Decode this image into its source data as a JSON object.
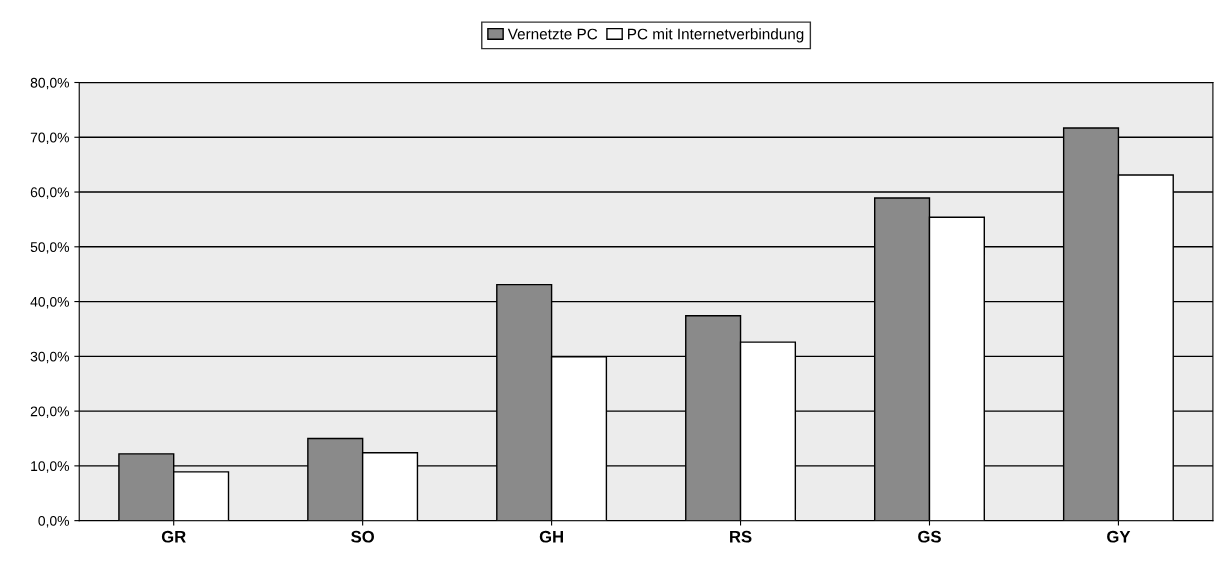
{
  "chart_data": {
    "type": "bar",
    "categories": [
      "GR",
      "SO",
      "GH",
      "RS",
      "GS",
      "GY"
    ],
    "series": [
      {
        "name": "Vernetzte PC",
        "color": "#8a8a8a",
        "values": [
          12.2,
          15.0,
          43.1,
          37.4,
          58.9,
          71.7
        ]
      },
      {
        "name": "PC mit Internetverbindung",
        "color": "#ffffff",
        "values": [
          8.9,
          12.4,
          29.9,
          32.6,
          55.4,
          63.1
        ]
      }
    ],
    "ylim": [
      0,
      80
    ],
    "yticks": [
      {
        "value": 0,
        "label": "0,0%"
      },
      {
        "value": 10,
        "label": "10,0%"
      },
      {
        "value": 20,
        "label": "20,0%"
      },
      {
        "value": 30,
        "label": "30,0%"
      },
      {
        "value": 40,
        "label": "40,0%"
      },
      {
        "value": 50,
        "label": "50,0%"
      },
      {
        "value": 60,
        "label": "60,0%"
      },
      {
        "value": 70,
        "label": "70,0%"
      },
      {
        "value": 80,
        "label": "80,0%"
      }
    ],
    "grid": "y",
    "legend": "top"
  }
}
